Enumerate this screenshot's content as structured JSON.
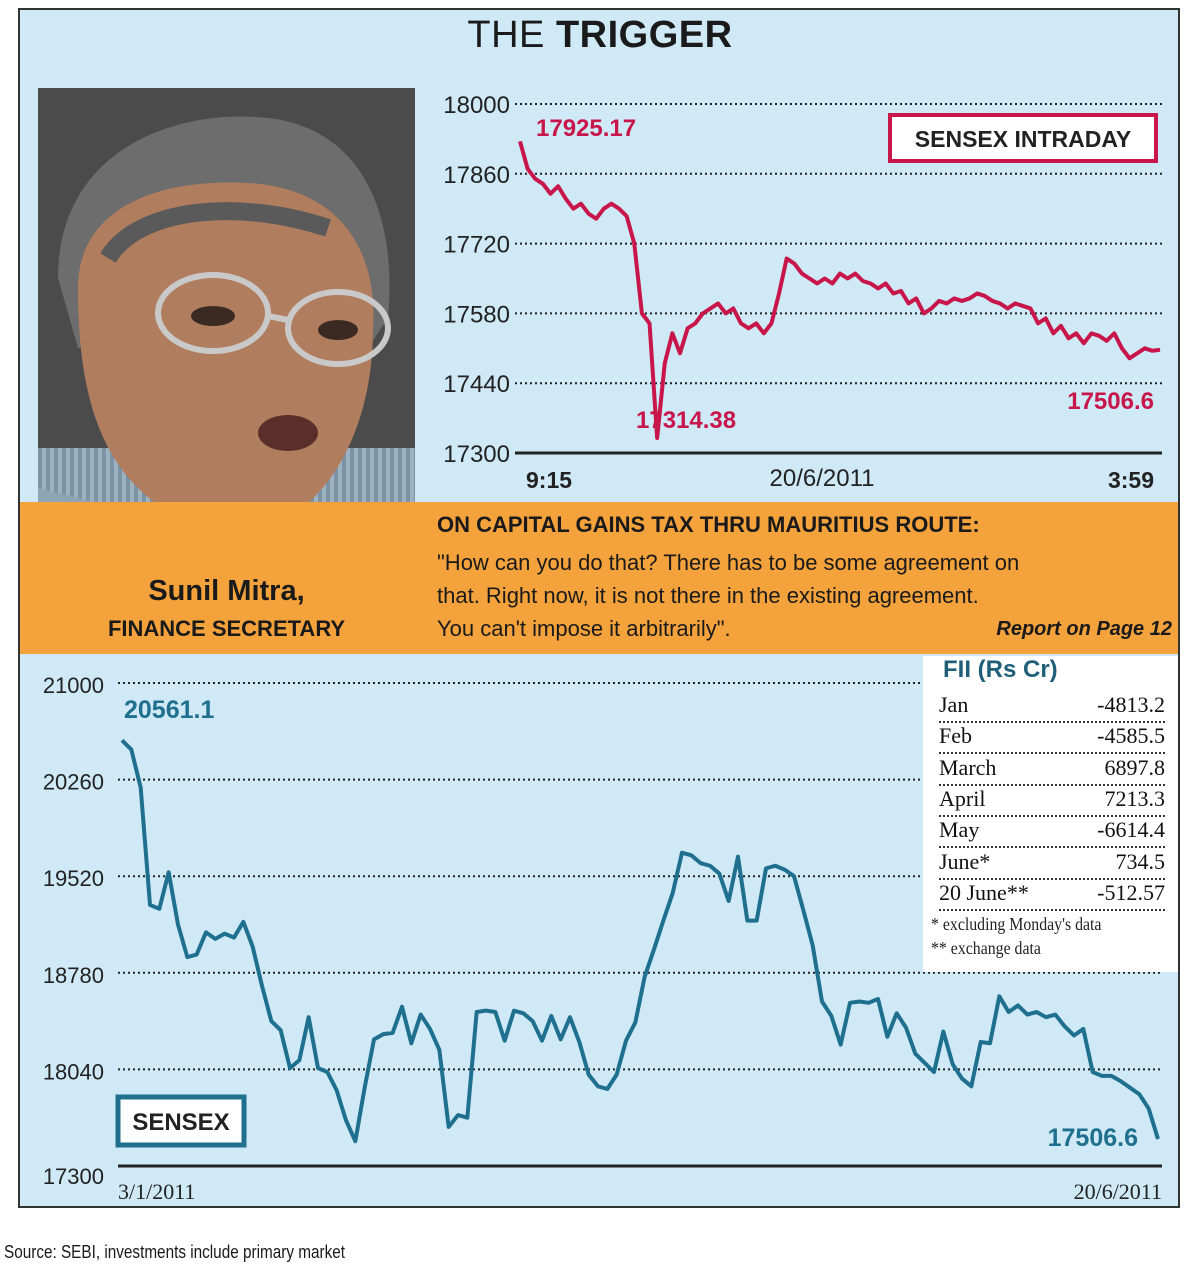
{
  "header": {
    "title_light": "THE",
    "title_bold": "TRIGGER"
  },
  "person": {
    "name": "Sunil Mitra,",
    "role": "FINANCE SECRETARY"
  },
  "quote": {
    "heading": "ON CAPITAL GAINS TAX THRU MAURITIUS ROUTE:",
    "lines": [
      "\"How can you do that? There has to be some agreement on",
      "that. Right now, it is not there in the existing agreement.",
      "You can't impose it arbitrarily\"."
    ],
    "report": "Report on Page 12"
  },
  "fii": {
    "title": "FII (Rs Cr)",
    "rows": [
      {
        "month": "Jan",
        "value": "-4813.2"
      },
      {
        "month": "Feb",
        "value": "-4585.5"
      },
      {
        "month": "March",
        "value": "6897.8"
      },
      {
        "month": "April",
        "value": "7213.3"
      },
      {
        "month": "May",
        "value": "-6614.4"
      },
      {
        "month": "June*",
        "value": "734.5"
      },
      {
        "month": "20 June**",
        "value": "-512.57"
      }
    ],
    "notes": [
      "* excluding Monday's data",
      "** exchange data"
    ]
  },
  "source": "Source: SEBI, investments include primary market",
  "colors": {
    "intraday_line": "#c8154a",
    "sensex_line": "#1f6f8e",
    "orange": "#f4a23c",
    "background": "#cfe9f6"
  },
  "chart_data": [
    {
      "type": "line",
      "legend_label": "SENSEX INTRADAY",
      "x_start_label": "9:15",
      "x_mid_label": "20/6/2011",
      "x_end_label": "3:59",
      "ylim": [
        17300,
        18000
      ],
      "yticks": [
        "18000",
        "17860",
        "17720",
        "17580",
        "17440",
        "17300"
      ],
      "grid": "horizontal dotted",
      "annotations": {
        "start": "17925.17",
        "low": "17314.38",
        "end": "17506.6"
      },
      "values": [
        17925,
        17870,
        17850,
        17840,
        17820,
        17835,
        17810,
        17790,
        17800,
        17780,
        17770,
        17790,
        17800,
        17790,
        17775,
        17720,
        17580,
        17560,
        17330,
        17480,
        17540,
        17500,
        17550,
        17560,
        17580,
        17590,
        17600,
        17580,
        17590,
        17560,
        17550,
        17560,
        17540,
        17560,
        17620,
        17690,
        17680,
        17660,
        17650,
        17640,
        17650,
        17640,
        17660,
        17650,
        17660,
        17645,
        17640,
        17630,
        17640,
        17620,
        17625,
        17600,
        17610,
        17580,
        17590,
        17605,
        17600,
        17610,
        17605,
        17610,
        17620,
        17615,
        17605,
        17600,
        17590,
        17600,
        17595,
        17590,
        17560,
        17570,
        17540,
        17555,
        17530,
        17540,
        17520,
        17540,
        17535,
        17525,
        17540,
        17510,
        17490,
        17500,
        17510,
        17505,
        17507
      ]
    },
    {
      "type": "line",
      "legend_label": "SENSEX",
      "x_start_label": "3/1/2011",
      "x_end_label": "20/6/2011",
      "ylim": [
        17300,
        21000
      ],
      "yticks": [
        "21000",
        "20260",
        "19520",
        "18780",
        "18040",
        "17300"
      ],
      "grid": "horizontal dotted",
      "annotations": {
        "start": "20561.1",
        "end": "17506.6"
      },
      "values": [
        20561,
        20490,
        20200,
        19300,
        19270,
        19550,
        19150,
        18900,
        18920,
        19090,
        19040,
        19080,
        19050,
        19170,
        18980,
        18680,
        18410,
        18340,
        18050,
        18110,
        18440,
        18050,
        18020,
        17880,
        17650,
        17490,
        17900,
        18270,
        18310,
        18320,
        18520,
        18240,
        18460,
        18350,
        18190,
        17600,
        17690,
        17670,
        18480,
        18490,
        18480,
        18260,
        18490,
        18470,
        18410,
        18260,
        18450,
        18270,
        18440,
        18250,
        18000,
        17910,
        17890,
        18000,
        18260,
        18400,
        18750,
        18960,
        19180,
        19390,
        19700,
        19680,
        19620,
        19600,
        19540,
        19330,
        19670,
        19180,
        19180,
        19580,
        19600,
        19570,
        19520,
        19260,
        18990,
        18560,
        18450,
        18230,
        18550,
        18560,
        18550,
        18580,
        18290,
        18470,
        18360,
        18160,
        18090,
        18020,
        18330,
        18080,
        17970,
        17910,
        18250,
        18240,
        18600,
        18480,
        18530,
        18460,
        18480,
        18440,
        18460,
        18370,
        18300,
        18350,
        18020,
        17990,
        17990,
        17950,
        17900,
        17850,
        17740,
        17507
      ]
    }
  ]
}
